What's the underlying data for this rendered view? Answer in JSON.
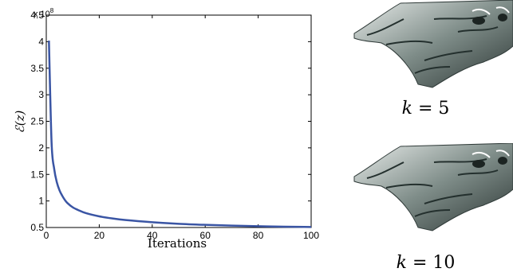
{
  "chart_data": {
    "type": "line",
    "title": "",
    "xlabel": "Iterations",
    "ylabel": "ℰ(z)",
    "y_multiplier": "x 10",
    "y_multiplier_exp": "8",
    "xlim": [
      0,
      100
    ],
    "ylim": [
      0.5,
      4.5
    ],
    "xticks": [
      0,
      20,
      40,
      60,
      80,
      100
    ],
    "yticks": [
      0.5,
      1,
      1.5,
      2,
      2.5,
      3,
      3.5,
      4,
      4.5
    ],
    "ytick_labels": [
      "0.5",
      "1",
      "1.5",
      "2",
      "2.5",
      "3",
      "3.5",
      "4",
      "4.5"
    ],
    "grid": false,
    "series": [
      {
        "color": "#3a55a4",
        "x": [
          1,
          2,
          3,
          4,
          5,
          6,
          7,
          8,
          10,
          12,
          15,
          20,
          25,
          30,
          40,
          50,
          60,
          70,
          80,
          90,
          100
        ],
        "y": [
          4.02,
          2.1,
          1.6,
          1.35,
          1.2,
          1.1,
          1.02,
          0.96,
          0.88,
          0.83,
          0.77,
          0.71,
          0.67,
          0.64,
          0.6,
          0.57,
          0.55,
          0.535,
          0.525,
          0.515,
          0.51
        ]
      }
    ]
  },
  "panels": [
    {
      "label_var": "k",
      "label_eq": " = 5",
      "icon": "face-surface-render"
    },
    {
      "label_var": "k",
      "label_eq": " = 10",
      "icon": "face-surface-render"
    }
  ]
}
